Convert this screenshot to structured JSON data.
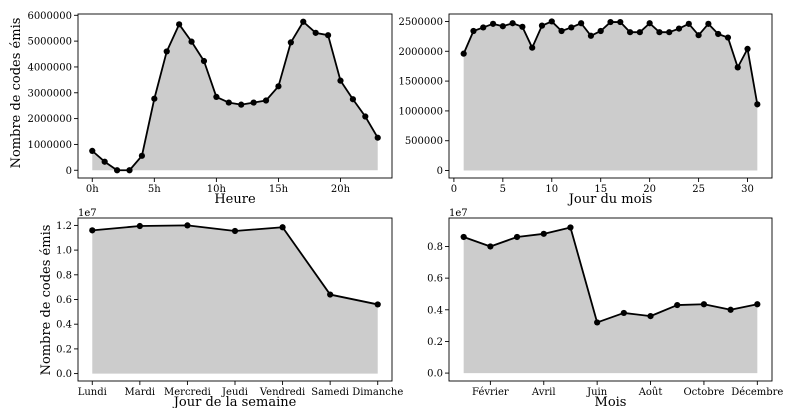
{
  "figure": {
    "ylabel": "Nombre de codes émis",
    "area_color": "#cccccc",
    "line_color": "#000000"
  },
  "chart_data": [
    {
      "type": "area",
      "xlabel": "Heure",
      "x": [
        0,
        1,
        2,
        3,
        4,
        5,
        6,
        7,
        8,
        9,
        10,
        11,
        12,
        13,
        14,
        15,
        16,
        17,
        18,
        19,
        20,
        21,
        22,
        23
      ],
      "values": [
        750000,
        330000,
        0,
        0,
        560000,
        2770000,
        4600000,
        5650000,
        4980000,
        4230000,
        2840000,
        2620000,
        2540000,
        2620000,
        2700000,
        3250000,
        4950000,
        5750000,
        5320000,
        5230000,
        3470000,
        2750000,
        2080000,
        1260000
      ],
      "xlim": [
        -1.15,
        24.15
      ],
      "ylim": [
        -300000,
        6050000
      ],
      "xticks": [
        0,
        5,
        10,
        15,
        20
      ],
      "xtick_labels": [
        "0h",
        "5h",
        "10h",
        "15h",
        "20h"
      ],
      "yticks": [
        0,
        1000000,
        2000000,
        3000000,
        4000000,
        5000000,
        6000000
      ],
      "ytick_labels": [
        "0",
        "1000000",
        "2000000",
        "3000000",
        "4000000",
        "5000000",
        "6000000"
      ],
      "offset_text": ""
    },
    {
      "type": "area",
      "xlabel": "Jour du mois",
      "x": [
        1,
        2,
        3,
        4,
        5,
        6,
        7,
        8,
        9,
        10,
        11,
        12,
        13,
        14,
        15,
        16,
        17,
        18,
        19,
        20,
        21,
        22,
        23,
        24,
        25,
        26,
        27,
        28,
        29,
        30,
        31
      ],
      "values": [
        1960000,
        2340000,
        2400000,
        2460000,
        2420000,
        2470000,
        2410000,
        2060000,
        2430000,
        2500000,
        2340000,
        2400000,
        2470000,
        2260000,
        2340000,
        2490000,
        2490000,
        2320000,
        2320000,
        2470000,
        2320000,
        2320000,
        2380000,
        2460000,
        2270000,
        2460000,
        2290000,
        2230000,
        1730000,
        2040000,
        1110000
      ],
      "xlim": [
        -0.5,
        32.5
      ],
      "ylim": [
        -125000,
        2625000
      ],
      "xticks": [
        0,
        5,
        10,
        15,
        20,
        25,
        30
      ],
      "xtick_labels": [
        "0",
        "5",
        "10",
        "15",
        "20",
        "25",
        "30"
      ],
      "yticks": [
        0,
        500000,
        1000000,
        1500000,
        2000000,
        2500000
      ],
      "ytick_labels": [
        "0",
        "500000",
        "1000000",
        "1500000",
        "2000000",
        "2500000"
      ],
      "offset_text": ""
    },
    {
      "type": "area",
      "xlabel": "Jour de la semaine",
      "categories": [
        "Lundi",
        "Mardi",
        "Mercredi",
        "Jeudi",
        "Vendredi",
        "Samedi",
        "Dimanche"
      ],
      "values": [
        1.16,
        1.195,
        1.2,
        1.155,
        1.185,
        0.64,
        0.56
      ],
      "xlim": [
        -0.3,
        6.3
      ],
      "ylim": [
        -0.06,
        1.26
      ],
      "yticks": [
        0,
        0.2,
        0.4,
        0.6,
        0.8,
        1.0,
        1.2
      ],
      "ytick_labels": [
        "0.0",
        "0.2",
        "0.4",
        "0.6",
        "0.8",
        "1.0",
        "1.2"
      ],
      "offset_text": "1e7"
    },
    {
      "type": "area",
      "xlabel": "Mois",
      "x": [
        1,
        2,
        3,
        4,
        5,
        6,
        7,
        8,
        9,
        10,
        11,
        12
      ],
      "values": [
        0.86,
        0.8,
        0.86,
        0.88,
        0.92,
        0.32,
        0.38,
        0.36,
        0.43,
        0.435,
        0.4,
        0.435
      ],
      "xtick_positions": [
        2,
        4,
        6,
        8,
        10,
        12
      ],
      "xtick_labels": [
        "Février",
        "Avril",
        "Juin",
        "Août",
        "Octobre",
        "Décembre"
      ],
      "xlim": [
        0.45,
        12.55
      ],
      "ylim": [
        -0.05,
        0.98
      ],
      "yticks": [
        0,
        0.2,
        0.4,
        0.6,
        0.8
      ],
      "ytick_labels": [
        "0.0",
        "0.2",
        "0.4",
        "0.6",
        "0.8"
      ],
      "offset_text": "1e7"
    }
  ]
}
